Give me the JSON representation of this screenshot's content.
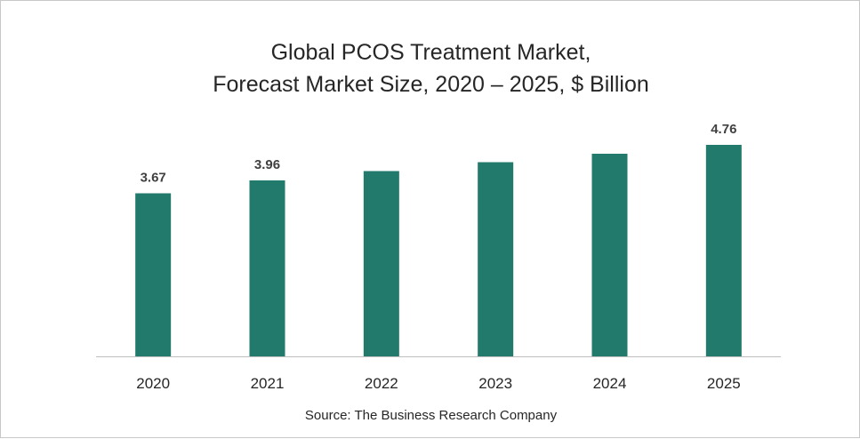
{
  "chart_data": {
    "type": "bar",
    "title_lines": [
      "Global PCOS Treatment Market,",
      "Forecast Market Size, 2020 – 2025, $ Billion"
    ],
    "categories": [
      "2020",
      "2021",
      "2022",
      "2023",
      "2024",
      "2025"
    ],
    "values": [
      3.67,
      3.96,
      4.17,
      4.37,
      4.56,
      4.76
    ],
    "data_labels": [
      "3.67",
      "3.96",
      "",
      "",
      "",
      "4.76"
    ],
    "xlabel": "",
    "ylabel": "",
    "ylim": [
      0,
      4.76
    ],
    "grid": false,
    "legend": "none",
    "bar_color": "#217A6B"
  },
  "source": "Source: The Business Research Company"
}
